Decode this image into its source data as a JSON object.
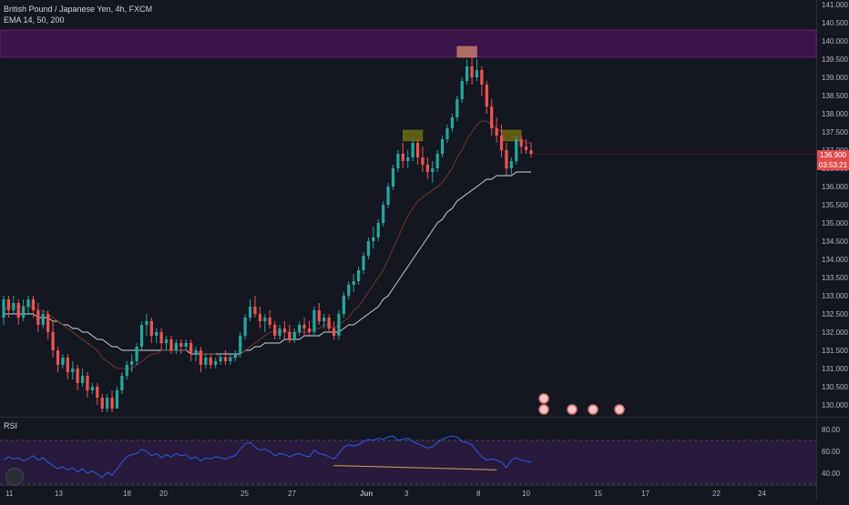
{
  "chart_data": [
    {
      "type": "candlestick",
      "title": "British Pound / Japanese Yen, 4h, FXCM",
      "indicator_label": "EMA 14, 50, 200",
      "ylim": [
        129.8,
        141.0
      ],
      "y_ticks": [
        "141.000",
        "140.500",
        "140.000",
        "139.500",
        "139.000",
        "138.500",
        "138.000",
        "137.500",
        "137.000",
        "136.500",
        "136.000",
        "135.500",
        "135.000",
        "134.500",
        "134.000",
        "133.500",
        "133.000",
        "132.500",
        "132.000",
        "131.500",
        "131.000",
        "130.500",
        "130.000"
      ],
      "x_ticks": [
        "11",
        "13",
        "18",
        "20",
        "25",
        "27",
        "Jun",
        "3",
        "8",
        "10",
        "15",
        "17",
        "22",
        "24"
      ],
      "last_price": "136.900",
      "countdown": "03:53:21",
      "candles": [
        [
          132.4,
          133.0,
          132.9,
          132.2
        ],
        [
          132.9,
          133.0,
          132.6,
          132.4
        ],
        [
          132.6,
          133.0,
          132.8,
          132.5
        ],
        [
          132.8,
          132.9,
          132.4,
          132.2
        ],
        [
          132.4,
          132.9,
          132.7,
          132.3
        ],
        [
          132.7,
          133.0,
          132.9,
          132.5
        ],
        [
          132.9,
          133.0,
          132.6,
          132.4
        ],
        [
          132.6,
          132.8,
          132.2,
          132.0
        ],
        [
          132.2,
          132.6,
          132.5,
          132.1
        ],
        [
          132.5,
          132.6,
          132.0,
          131.8
        ],
        [
          132.0,
          132.3,
          131.5,
          131.3
        ],
        [
          131.5,
          131.6,
          131.1,
          130.9
        ],
        [
          131.1,
          131.4,
          131.3,
          131.0
        ],
        [
          131.3,
          131.4,
          130.9,
          130.7
        ],
        [
          130.9,
          131.2,
          131.0,
          130.7
        ],
        [
          131.0,
          131.1,
          130.6,
          130.4
        ],
        [
          130.6,
          131.0,
          130.8,
          130.5
        ],
        [
          130.8,
          130.9,
          130.4,
          130.2
        ],
        [
          130.4,
          130.6,
          130.5,
          130.3
        ],
        [
          130.5,
          130.6,
          130.2,
          130.0
        ],
        [
          130.2,
          130.3,
          129.9,
          129.8
        ],
        [
          129.9,
          130.3,
          130.2,
          129.8
        ],
        [
          130.2,
          130.4,
          129.9,
          129.8
        ],
        [
          129.9,
          130.5,
          130.4,
          129.9
        ],
        [
          130.4,
          130.9,
          130.8,
          130.3
        ],
        [
          130.8,
          131.2,
          131.1,
          130.7
        ],
        [
          131.1,
          131.4,
          131.2,
          130.9
        ],
        [
          131.2,
          131.7,
          131.6,
          131.1
        ],
        [
          131.6,
          132.3,
          132.2,
          131.5
        ],
        [
          132.2,
          132.5,
          132.3,
          131.9
        ],
        [
          132.3,
          132.4,
          131.9,
          131.7
        ],
        [
          131.9,
          132.1,
          132.0,
          131.7
        ],
        [
          132.0,
          132.1,
          131.7,
          131.5
        ],
        [
          131.7,
          131.9,
          131.8,
          131.5
        ],
        [
          131.8,
          131.9,
          131.5,
          131.4
        ],
        [
          131.5,
          131.8,
          131.7,
          131.4
        ],
        [
          131.7,
          131.8,
          131.6,
          131.4
        ],
        [
          131.6,
          131.8,
          131.7,
          131.5
        ],
        [
          131.7,
          131.8,
          131.4,
          131.2
        ],
        [
          131.4,
          131.6,
          131.5,
          131.2
        ],
        [
          131.5,
          131.6,
          131.1,
          130.9
        ],
        [
          131.1,
          131.4,
          131.3,
          131.0
        ],
        [
          131.3,
          131.4,
          131.1,
          131.0
        ],
        [
          131.1,
          131.3,
          131.2,
          131.0
        ],
        [
          131.2,
          131.4,
          131.3,
          131.1
        ],
        [
          131.3,
          131.5,
          131.2,
          131.1
        ],
        [
          131.2,
          131.4,
          131.3,
          131.1
        ],
        [
          131.3,
          131.5,
          131.4,
          131.2
        ],
        [
          131.4,
          132.0,
          131.9,
          131.3
        ],
        [
          131.9,
          132.5,
          132.4,
          131.8
        ],
        [
          132.4,
          132.9,
          132.7,
          132.3
        ],
        [
          132.7,
          133.0,
          132.5,
          132.4
        ],
        [
          132.5,
          132.7,
          132.3,
          132.1
        ],
        [
          132.3,
          132.5,
          132.4,
          132.0
        ],
        [
          132.4,
          132.6,
          132.2,
          132.1
        ],
        [
          132.2,
          132.3,
          131.9,
          131.8
        ],
        [
          131.9,
          132.2,
          132.1,
          131.8
        ],
        [
          132.1,
          132.3,
          132.0,
          131.8
        ],
        [
          132.0,
          132.2,
          131.8,
          131.7
        ],
        [
          131.8,
          132.1,
          132.0,
          131.7
        ],
        [
          132.0,
          132.3,
          132.2,
          131.9
        ],
        [
          132.2,
          132.4,
          132.1,
          131.9
        ],
        [
          132.1,
          132.3,
          132.0,
          131.9
        ],
        [
          132.0,
          132.7,
          132.6,
          131.9
        ],
        [
          132.6,
          132.8,
          132.3,
          132.2
        ],
        [
          132.3,
          132.5,
          132.4,
          132.1
        ],
        [
          132.4,
          132.5,
          132.1,
          132.0
        ],
        [
          132.1,
          132.3,
          131.9,
          131.8
        ],
        [
          131.9,
          132.6,
          132.5,
          131.8
        ],
        [
          132.5,
          133.1,
          133.0,
          132.4
        ],
        [
          133.0,
          133.4,
          133.3,
          132.9
        ],
        [
          133.3,
          133.6,
          133.4,
          133.1
        ],
        [
          133.4,
          133.8,
          133.7,
          133.3
        ],
        [
          133.7,
          134.2,
          134.1,
          133.6
        ],
        [
          134.1,
          134.6,
          134.5,
          134.0
        ],
        [
          134.5,
          134.9,
          134.6,
          134.3
        ],
        [
          134.6,
          135.1,
          135.0,
          134.5
        ],
        [
          135.0,
          135.6,
          135.5,
          134.9
        ],
        [
          135.5,
          136.1,
          136.0,
          135.4
        ],
        [
          136.0,
          136.6,
          136.5,
          135.9
        ],
        [
          136.5,
          137.0,
          136.9,
          136.4
        ],
        [
          136.9,
          137.2,
          136.7,
          136.5
        ],
        [
          136.7,
          137.0,
          136.8,
          136.5
        ],
        [
          136.8,
          137.3,
          137.2,
          136.7
        ],
        [
          137.2,
          137.3,
          136.8,
          136.6
        ],
        [
          136.8,
          137.1,
          136.6,
          136.4
        ],
        [
          136.6,
          136.8,
          136.4,
          136.2
        ],
        [
          136.4,
          136.7,
          136.5,
          136.1
        ],
        [
          136.5,
          137.0,
          136.9,
          136.4
        ],
        [
          136.9,
          137.4,
          137.3,
          136.8
        ],
        [
          137.3,
          137.7,
          137.6,
          137.2
        ],
        [
          137.6,
          138.0,
          137.9,
          137.5
        ],
        [
          137.9,
          138.5,
          138.4,
          137.8
        ],
        [
          138.4,
          139.0,
          138.9,
          138.3
        ],
        [
          138.9,
          139.5,
          139.3,
          138.8
        ],
        [
          139.3,
          139.7,
          139.0,
          138.8
        ],
        [
          139.0,
          139.5,
          139.2,
          138.9
        ],
        [
          139.2,
          139.3,
          138.8,
          138.5
        ],
        [
          138.8,
          138.9,
          138.2,
          138.0
        ],
        [
          138.2,
          138.4,
          137.6,
          137.4
        ],
        [
          137.6,
          137.9,
          137.4,
          137.2
        ],
        [
          137.4,
          137.7,
          137.0,
          136.8
        ],
        [
          137.0,
          137.2,
          136.5,
          136.3
        ],
        [
          136.5,
          136.8,
          136.7,
          136.3
        ],
        [
          136.7,
          137.4,
          137.3,
          136.6
        ],
        [
          137.3,
          137.4,
          137.1,
          136.9
        ],
        [
          137.1,
          137.3,
          137.0,
          136.9
        ],
        [
          137.0,
          137.2,
          136.9,
          136.8
        ]
      ],
      "ema_short": [
        132.6,
        132.7,
        132.7,
        132.7,
        132.7,
        132.7,
        132.7,
        132.6,
        132.6,
        132.5,
        132.4,
        132.3,
        132.2,
        132.1,
        132.0,
        131.9,
        131.8,
        131.7,
        131.6,
        131.5,
        131.3,
        131.2,
        131.1,
        131.0,
        131.0,
        131.0,
        131.0,
        131.1,
        131.2,
        131.3,
        131.4,
        131.4,
        131.5,
        131.5,
        131.5,
        131.5,
        131.5,
        131.5,
        131.5,
        131.5,
        131.4,
        131.4,
        131.4,
        131.4,
        131.3,
        131.3,
        131.3,
        131.3,
        131.4,
        131.5,
        131.6,
        131.7,
        131.8,
        131.9,
        132.0,
        132.0,
        132.0,
        132.0,
        132.0,
        132.0,
        132.0,
        132.0,
        132.0,
        132.1,
        132.1,
        132.2,
        132.2,
        132.1,
        132.2,
        132.3,
        132.4,
        132.6,
        132.7,
        132.9,
        133.1,
        133.3,
        133.5,
        133.7,
        134.0,
        134.3,
        134.6,
        134.9,
        135.2,
        135.4,
        135.6,
        135.7,
        135.8,
        135.9,
        136.0,
        136.1,
        136.3,
        136.5,
        136.8,
        137.0,
        137.3,
        137.5,
        137.7,
        137.8,
        137.8,
        137.7,
        137.6,
        137.5,
        137.4,
        137.3,
        137.3,
        137.3,
        137.2,
        137.2
      ],
      "ema_long": [
        132.5,
        132.5,
        132.5,
        132.5,
        132.5,
        132.5,
        132.5,
        132.4,
        132.4,
        132.4,
        132.3,
        132.3,
        132.2,
        132.2,
        132.1,
        132.1,
        132.0,
        132.0,
        131.9,
        131.8,
        131.8,
        131.7,
        131.6,
        131.6,
        131.5,
        131.5,
        131.5,
        131.5,
        131.5,
        131.5,
        131.5,
        131.5,
        131.5,
        131.5,
        131.5,
        131.5,
        131.5,
        131.5,
        131.4,
        131.4,
        131.4,
        131.4,
        131.4,
        131.4,
        131.4,
        131.4,
        131.4,
        131.4,
        131.4,
        131.5,
        131.5,
        131.6,
        131.6,
        131.7,
        131.7,
        131.7,
        131.7,
        131.8,
        131.8,
        131.8,
        131.8,
        131.9,
        131.9,
        131.9,
        131.9,
        132.0,
        132.0,
        132.0,
        132.0,
        132.1,
        132.2,
        132.2,
        132.3,
        132.4,
        132.5,
        132.6,
        132.7,
        132.9,
        133.0,
        133.2,
        133.4,
        133.6,
        133.8,
        134.0,
        134.2,
        134.4,
        134.6,
        134.8,
        135.0,
        135.1,
        135.3,
        135.4,
        135.6,
        135.7,
        135.8,
        135.9,
        136.0,
        136.1,
        136.2,
        136.2,
        136.3,
        136.3,
        136.3,
        136.3,
        136.4,
        136.4,
        136.4,
        136.4
      ],
      "zones": [
        {
          "kind": "resistance",
          "from": 139.55,
          "to": 140.3,
          "color": "#3c1449"
        },
        {
          "kind": "double-top-left",
          "x_from": 81,
          "x_to": 85,
          "from": 137.25,
          "to": 137.55,
          "color": "#6b6b10"
        },
        {
          "kind": "peak",
          "x_from": 92,
          "x_to": 96,
          "from": 139.55,
          "to": 139.85,
          "color": "#c47a6a"
        },
        {
          "kind": "double-top-right",
          "x_from": 101,
          "x_to": 105,
          "from": 137.25,
          "to": 137.55,
          "color": "#6b6b10"
        }
      ]
    },
    {
      "type": "line",
      "title": "RSI",
      "ylim": [
        30,
        90
      ],
      "y_ticks": [
        "80.00",
        "60.00",
        "40.00"
      ],
      "bands": [
        70,
        30
      ],
      "values": [
        52,
        55,
        53,
        54,
        51,
        53,
        56,
        52,
        54,
        50,
        47,
        44,
        46,
        43,
        45,
        41,
        44,
        40,
        42,
        39,
        36,
        41,
        38,
        44,
        50,
        55,
        57,
        58,
        62,
        60,
        56,
        58,
        54,
        57,
        55,
        58,
        56,
        57,
        53,
        55,
        51,
        54,
        53,
        55,
        54,
        53,
        55,
        56,
        62,
        67,
        68,
        64,
        61,
        62,
        60,
        56,
        58,
        57,
        55,
        57,
        58,
        56,
        55,
        61,
        58,
        57,
        55,
        53,
        58,
        64,
        66,
        65,
        66,
        69,
        71,
        70,
        72,
        71,
        73,
        74,
        70,
        71,
        72,
        69,
        67,
        65,
        63,
        64,
        68,
        71,
        73,
        74,
        73,
        69,
        68,
        66,
        60,
        55,
        52,
        53,
        52,
        50,
        45,
        52,
        54,
        52,
        51,
        50
      ],
      "divergence_line": {
        "from_index": 67,
        "from_value": 47,
        "to_index": 100,
        "to_value": 43,
        "color": "#d4a15a"
      },
      "color": "#2962ff"
    }
  ],
  "labels": {
    "rsi": "RSI"
  }
}
